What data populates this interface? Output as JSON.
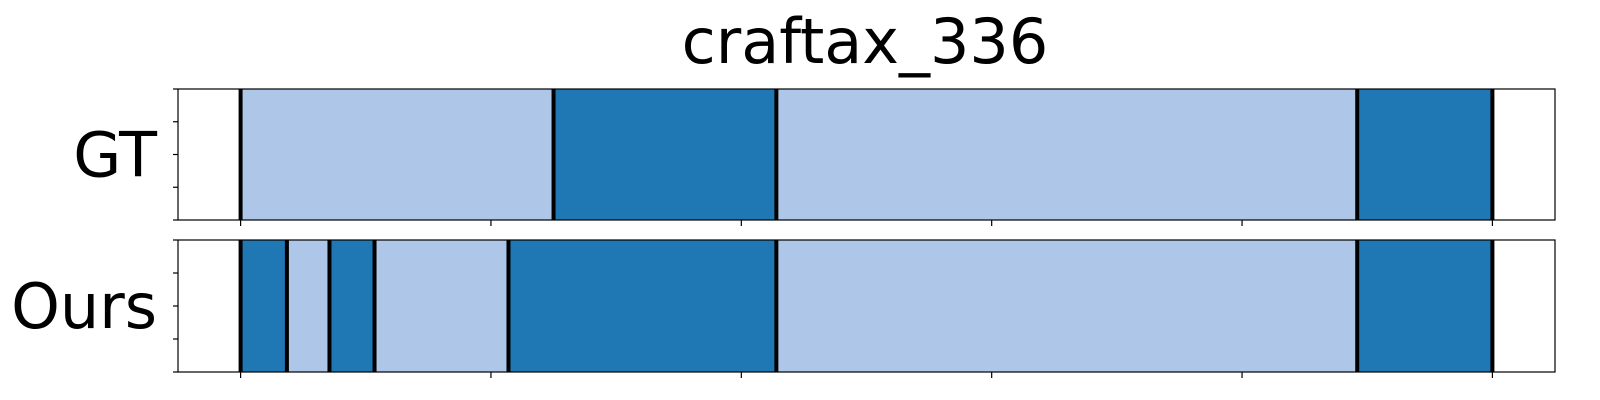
{
  "chart_data": {
    "type": "segmentation",
    "title": "craftax_336",
    "x_range": [
      -25,
      525
    ],
    "x_ticks": [
      0,
      100,
      200,
      300,
      400,
      500
    ],
    "colors": {
      "light": "#aec7e8",
      "dark": "#1f77b4",
      "boundary": "#000000"
    },
    "rows": [
      {
        "label": "GT",
        "segments": [
          {
            "start": 0,
            "end": 125,
            "color": "light"
          },
          {
            "start": 125,
            "end": 214,
            "color": "dark"
          },
          {
            "start": 214,
            "end": 446,
            "color": "light"
          },
          {
            "start": 446,
            "end": 500,
            "color": "dark"
          }
        ]
      },
      {
        "label": "Ours",
        "segments": [
          {
            "start": 0,
            "end": 18.5,
            "color": "dark"
          },
          {
            "start": 18.5,
            "end": 35.5,
            "color": "light"
          },
          {
            "start": 35.5,
            "end": 53.5,
            "color": "dark"
          },
          {
            "start": 53.5,
            "end": 107,
            "color": "light"
          },
          {
            "start": 107,
            "end": 214,
            "color": "dark"
          },
          {
            "start": 214,
            "end": 446,
            "color": "light"
          },
          {
            "start": 446,
            "end": 500,
            "color": "dark"
          }
        ]
      }
    ]
  }
}
